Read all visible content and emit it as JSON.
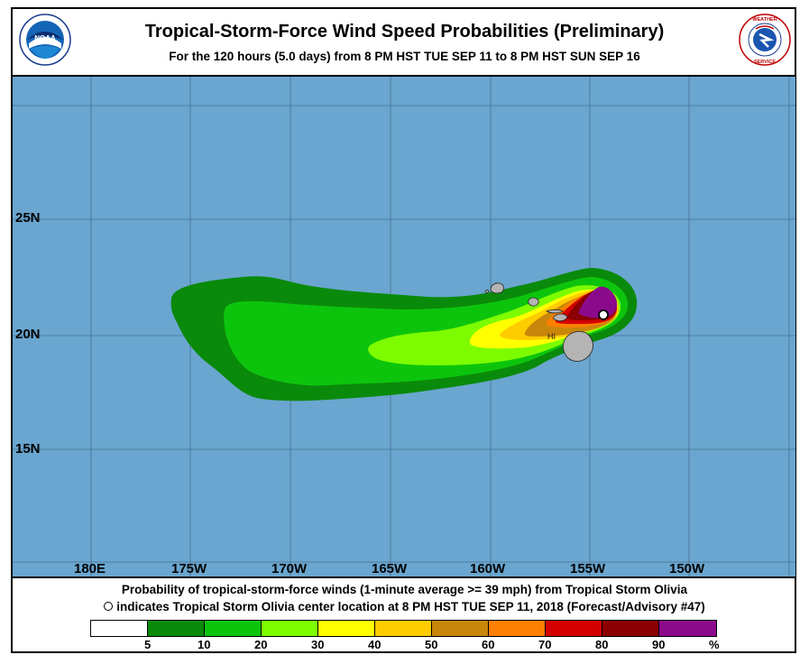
{
  "header": {
    "title": "Tropical-Storm-Force Wind Speed Probabilities (Preliminary)",
    "subtitle": "For the 120 hours (5.0 days) from 8 PM HST TUE SEP 11 to 8 PM HST SUN SEP 16",
    "logo_left": "NOAA",
    "logo_right": "NATIONAL WEATHER SERVICE"
  },
  "map": {
    "longitude_labels": [
      "180E",
      "175W",
      "170W",
      "165W",
      "160W",
      "155W",
      "150W"
    ],
    "latitude_labels": [
      "25N",
      "20N",
      "15N"
    ],
    "region_label": "HI",
    "ocean_color": "#6aa6cf",
    "storm_center": {
      "name": "Tropical Storm Olivia",
      "lat": 20.9,
      "lon": -154.3
    }
  },
  "footer": {
    "line1": "Probability of tropical-storm-force winds (1-minute average >= 39 mph) from Tropical Storm Olivia",
    "line2": "indicates Tropical Storm Olivia center location at 8 PM HST TUE SEP 11, 2018 (Forecast/Advisory #47)"
  },
  "legend": {
    "colors": [
      "#ffffff",
      "#0a8a0a",
      "#0dc40d",
      "#7dfc00",
      "#ffff00",
      "#ffcc00",
      "#c8860a",
      "#ff7f00",
      "#d40000",
      "#8b0000",
      "#8b0a8b"
    ],
    "tick_labels": [
      "5",
      "10",
      "20",
      "30",
      "40",
      "50",
      "60",
      "70",
      "80",
      "90",
      "%"
    ]
  }
}
